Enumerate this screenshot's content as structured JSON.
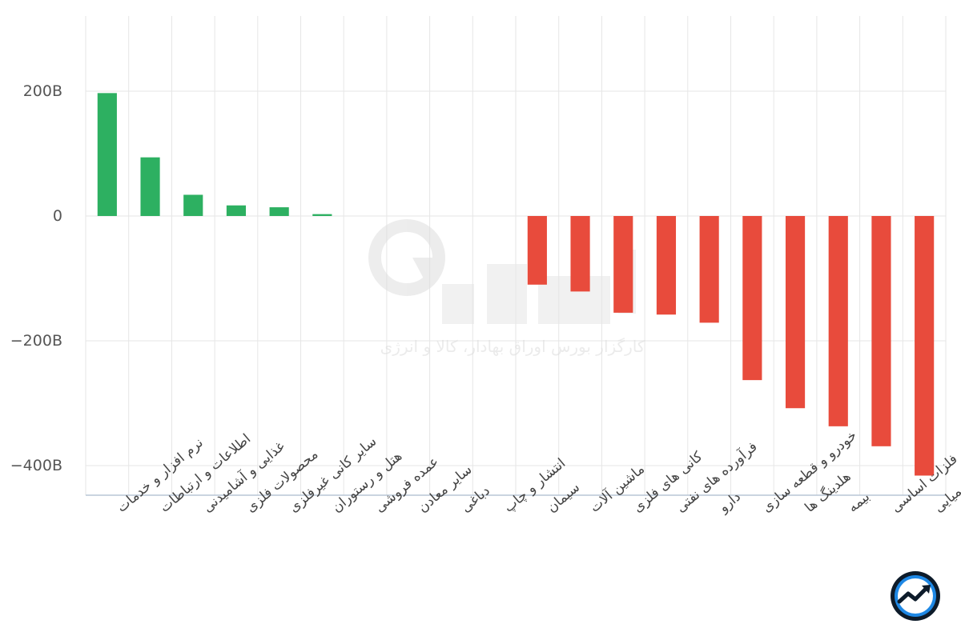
{
  "chart_data": {
    "type": "bar",
    "categories": [
      "نرم افزار و خدمات",
      "اطلاعات و ارتباطات",
      "غذایی و آشامیدنی",
      "محصولات فلزی",
      "سایر کانی غیرفلزی",
      "هتل و رستوران",
      "عمده فروشی",
      "سایر معادن",
      "دباغی",
      "انتشار و چاپ",
      "سیمان",
      "ماشین آلات",
      "کانی های فلزی",
      "فرآورده های نفتی",
      "دارو",
      "خودرو و قطعه سازی",
      "هلدینگ ها",
      "بیمه",
      "فلزات اساسی",
      "محصولات شیمیایی"
    ],
    "values": [
      197,
      94,
      34,
      17,
      14,
      3,
      0,
      0,
      0,
      0,
      -110,
      -121,
      -155,
      -158,
      -171,
      -263,
      -308,
      -337,
      -369,
      -416
    ],
    "unit": "B",
    "ylim": [
      -450,
      320
    ],
    "yticks": [
      200,
      0,
      -200,
      -400
    ],
    "ytick_labels": [
      "200B",
      "0",
      "−200B",
      "−400B"
    ],
    "positive_color": "#2db061",
    "negative_color": "#e84b3c",
    "grid": true,
    "title": "",
    "xlabel": "",
    "ylabel": ""
  },
  "watermark": {
    "text": "کارگزار بورس اوراق بهادار، کالا و انرژی"
  },
  "logo_icon": "chart-trend-logo-icon"
}
